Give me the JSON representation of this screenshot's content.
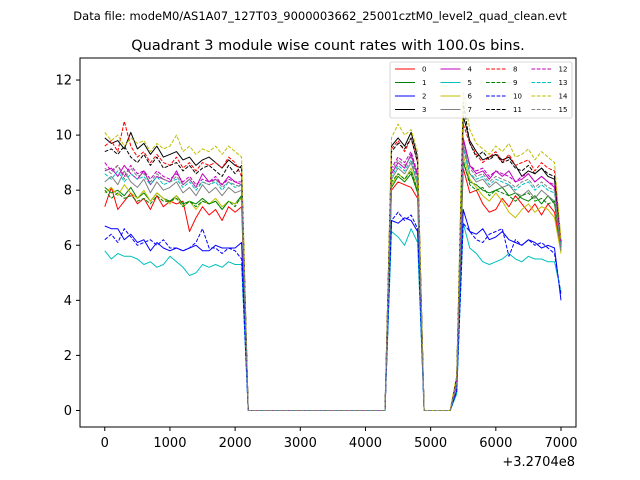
{
  "suptitle": "Data file: modeM0/AS1A07_127T03_9000003662_25001cztM0_level2_quad_clean.evt",
  "chart_data": {
    "type": "line",
    "title": "Quadrant 3 module wise count rates with 100.0s bins.",
    "xlabel": "",
    "ylabel": "",
    "x_offset_label": "+3.2704e8",
    "xlim": [
      -380,
      7230
    ],
    "ylim": [
      -0.6,
      12.8
    ],
    "xticks": [
      0,
      1000,
      2000,
      3000,
      4000,
      5000,
      6000,
      7000
    ],
    "yticks": [
      0,
      2,
      4,
      6,
      8,
      10,
      12
    ],
    "legend_position": "upper-right",
    "legend_columns": 4,
    "x": [
      0,
      100,
      200,
      300,
      400,
      500,
      600,
      700,
      800,
      900,
      1000,
      1100,
      1200,
      1300,
      1400,
      1500,
      1600,
      1700,
      1800,
      1900,
      2000,
      2100,
      2200,
      2300,
      2400,
      2500,
      2600,
      2700,
      2800,
      2900,
      3000,
      3100,
      3200,
      3300,
      3400,
      3500,
      3600,
      3700,
      3800,
      3900,
      4000,
      4100,
      4200,
      4300,
      4400,
      4500,
      4600,
      4700,
      4800,
      4900,
      5000,
      5100,
      5200,
      5300,
      5400,
      5500,
      5600,
      5700,
      5800,
      5900,
      6000,
      6100,
      6200,
      6300,
      6400,
      6500,
      6600,
      6700,
      6800,
      6900,
      7000
    ],
    "series": [
      {
        "name": "0",
        "color": "#ff0000",
        "dash": "solid",
        "values": [
          7.4,
          8.1,
          7.3,
          7.6,
          7.9,
          7.5,
          7.7,
          7.3,
          7.8,
          7.4,
          7.6,
          7.5,
          7.6,
          6.5,
          7.0,
          7.4,
          7.1,
          7.3,
          6.9,
          7.4,
          7.2,
          7.4,
          0.0,
          0,
          0,
          0,
          0,
          0,
          0,
          0,
          0,
          0,
          0,
          0,
          0,
          0,
          0,
          0,
          0,
          0,
          0,
          0,
          0,
          0,
          8.0,
          8.3,
          8.2,
          8.1,
          7.7,
          0.0,
          0,
          0,
          0,
          0,
          0.9,
          8.8,
          7.9,
          8.0,
          7.5,
          7.2,
          7.3,
          7.7,
          7.4,
          7.8,
          7.5,
          7.2,
          7.5,
          7.1,
          7.5,
          7.2,
          5.8
        ]
      },
      {
        "name": "1",
        "color": "#008000",
        "dash": "solid",
        "values": [
          8.1,
          7.9,
          8.0,
          7.8,
          8.1,
          7.7,
          7.9,
          7.6,
          7.9,
          7.7,
          7.6,
          7.8,
          7.5,
          7.6,
          7.5,
          7.7,
          7.5,
          7.6,
          7.3,
          7.6,
          7.5,
          7.8,
          0.0,
          0,
          0,
          0,
          0,
          0,
          0,
          0,
          0,
          0,
          0,
          0,
          0,
          0,
          0,
          0,
          0,
          0,
          0,
          0,
          0,
          0,
          8.1,
          8.5,
          8.3,
          8.6,
          7.9,
          0.0,
          0,
          0,
          0,
          0,
          1.0,
          9.0,
          8.3,
          8.2,
          8.0,
          7.9,
          8.0,
          8.1,
          7.8,
          7.9,
          7.7,
          7.6,
          7.8,
          7.5,
          7.8,
          7.5,
          5.9
        ]
      },
      {
        "name": "2",
        "color": "#0000ff",
        "dash": "solid",
        "values": [
          6.7,
          6.6,
          6.6,
          6.2,
          6.4,
          6.1,
          6.2,
          5.8,
          6.1,
          5.9,
          5.8,
          5.9,
          5.8,
          5.9,
          6.0,
          5.8,
          5.8,
          6.0,
          5.9,
          5.9,
          5.9,
          6.1,
          0.0,
          0,
          0,
          0,
          0,
          0,
          0,
          0,
          0,
          0,
          0,
          0,
          0,
          0,
          0,
          0,
          0,
          0,
          0,
          0,
          0,
          0,
          6.9,
          6.8,
          7.0,
          6.9,
          6.5,
          0.0,
          0,
          0,
          0,
          0,
          0.7,
          7.3,
          6.5,
          6.4,
          6.6,
          6.2,
          6.3,
          6.5,
          6.2,
          6.1,
          6.0,
          6.2,
          6.1,
          5.9,
          6.0,
          5.9,
          4.0
        ]
      },
      {
        "name": "3",
        "color": "#000000",
        "dash": "solid",
        "values": [
          9.9,
          9.7,
          9.8,
          9.5,
          10.1,
          9.5,
          9.7,
          9.3,
          9.6,
          9.2,
          9.3,
          9.4,
          9.1,
          9.2,
          8.9,
          9.1,
          9.2,
          9.0,
          8.8,
          9.1,
          8.9,
          8.8,
          0.0,
          0,
          0,
          0,
          0,
          0,
          0,
          0,
          0,
          0,
          0,
          0,
          0,
          0,
          0,
          0,
          0,
          0,
          0,
          0,
          0,
          0,
          9.6,
          9.9,
          9.6,
          10.1,
          9.2,
          0.0,
          0,
          0,
          0,
          0,
          1.2,
          10.7,
          9.8,
          9.4,
          9.1,
          9.2,
          9.3,
          9.1,
          9.2,
          8.9,
          8.5,
          8.7,
          8.6,
          8.8,
          8.5,
          8.4,
          6.0
        ]
      },
      {
        "name": "4",
        "color": "#bf00bf",
        "dash": "solid",
        "values": [
          8.7,
          8.8,
          8.5,
          8.9,
          8.6,
          8.4,
          8.7,
          8.2,
          8.5,
          8.4,
          8.3,
          8.7,
          8.2,
          8.4,
          8.1,
          8.6,
          8.3,
          8.4,
          8.2,
          8.5,
          8.3,
          8.2,
          0.0,
          0,
          0,
          0,
          0,
          0,
          0,
          0,
          0,
          0,
          0,
          0,
          0,
          0,
          0,
          0,
          0,
          0,
          0,
          0,
          0,
          0,
          8.6,
          9.0,
          8.8,
          9.3,
          8.5,
          0.0,
          0,
          0,
          0,
          0,
          1.0,
          9.9,
          8.9,
          8.6,
          8.7,
          8.4,
          8.7,
          8.5,
          8.7,
          8.3,
          8.4,
          8.6,
          8.3,
          8.5,
          8.3,
          8.1,
          5.9
        ]
      },
      {
        "name": "5",
        "color": "#00bfbf",
        "dash": "solid",
        "values": [
          5.8,
          5.5,
          5.7,
          5.6,
          5.6,
          5.5,
          5.3,
          5.4,
          5.2,
          5.3,
          5.6,
          5.4,
          5.2,
          4.9,
          5.0,
          5.3,
          5.2,
          5.3,
          5.2,
          5.4,
          5.3,
          5.3,
          0.0,
          0,
          0,
          0,
          0,
          0,
          0,
          0,
          0,
          0,
          0,
          0,
          0,
          0,
          0,
          0,
          0,
          0,
          0,
          0,
          0,
          0,
          6.5,
          6.3,
          6.0,
          6.6,
          6.1,
          0.0,
          0,
          0,
          0,
          0,
          0.6,
          6.8,
          5.9,
          5.7,
          5.4,
          5.3,
          5.4,
          5.5,
          5.7,
          5.5,
          5.4,
          5.6,
          5.5,
          5.5,
          5.4,
          5.4,
          4.3
        ]
      },
      {
        "name": "6",
        "color": "#bfbf00",
        "dash": "solid",
        "values": [
          7.9,
          8.1,
          7.8,
          8.2,
          7.9,
          7.7,
          8.0,
          7.6,
          7.9,
          7.7,
          7.5,
          7.8,
          7.4,
          7.6,
          7.3,
          7.6,
          7.5,
          7.7,
          7.4,
          7.6,
          7.5,
          7.7,
          0.0,
          0,
          0,
          0,
          0,
          0,
          0,
          0,
          0,
          0,
          0,
          0,
          0,
          0,
          0,
          0,
          0,
          0,
          0,
          0,
          0,
          0,
          8.2,
          8.6,
          8.4,
          8.8,
          8.0,
          0.0,
          0,
          0,
          0,
          0,
          1.0,
          9.3,
          8.4,
          8.1,
          7.8,
          7.6,
          7.9,
          7.6,
          7.2,
          7.0,
          7.3,
          7.5,
          7.2,
          7.4,
          7.3,
          7.0,
          5.7
        ]
      },
      {
        "name": "7",
        "color": "#808080",
        "dash": "solid",
        "values": [
          8.3,
          8.5,
          8.2,
          8.7,
          8.3,
          8.1,
          8.4,
          7.9,
          8.3,
          8.0,
          8.1,
          8.3,
          7.9,
          8.1,
          7.8,
          8.2,
          7.9,
          8.1,
          7.8,
          8.1,
          7.9,
          8.0,
          0.0,
          0,
          0,
          0,
          0,
          0,
          0,
          0,
          0,
          0,
          0,
          0,
          0,
          0,
          0,
          0,
          0,
          0,
          0,
          0,
          0,
          0,
          8.4,
          8.8,
          8.6,
          9.0,
          8.2,
          0.0,
          0,
          0,
          0,
          0,
          1.0,
          9.6,
          8.6,
          8.3,
          8.4,
          8.1,
          8.3,
          8.1,
          8.2,
          7.9,
          7.8,
          8.0,
          7.7,
          8.0,
          7.8,
          7.6,
          5.8
        ]
      },
      {
        "name": "8",
        "color": "#ff0000",
        "dash": "dashed",
        "values": [
          9.6,
          9.8,
          9.4,
          10.5,
          9.6,
          9.2,
          9.4,
          9.0,
          9.3,
          9.0,
          8.9,
          9.2,
          8.8,
          9.0,
          8.7,
          9.0,
          8.9,
          9.0,
          8.8,
          9.2,
          9.0,
          8.5,
          0.0,
          0,
          0,
          0,
          0,
          0,
          0,
          0,
          0,
          0,
          0,
          0,
          0,
          0,
          0,
          0,
          0,
          0,
          0,
          0,
          0,
          0,
          9.5,
          9.8,
          9.4,
          9.9,
          9.0,
          0.0,
          0,
          0,
          0,
          0,
          1.2,
          10.4,
          9.7,
          9.3,
          9.0,
          9.2,
          9.4,
          9.0,
          9.3,
          8.9,
          9.0,
          9.1,
          8.7,
          9.0,
          8.8,
          8.7,
          6.1
        ]
      },
      {
        "name": "9",
        "color": "#008000",
        "dash": "dashed",
        "values": [
          8.0,
          7.7,
          7.9,
          7.7,
          7.8,
          7.6,
          7.7,
          7.5,
          7.8,
          7.6,
          7.6,
          7.7,
          7.4,
          7.6,
          7.4,
          7.6,
          7.5,
          7.6,
          7.3,
          7.6,
          7.4,
          7.8,
          0.0,
          0,
          0,
          0,
          0,
          0,
          0,
          0,
          0,
          0,
          0,
          0,
          0,
          0,
          0,
          0,
          0,
          0,
          0,
          0,
          0,
          0,
          8.3,
          8.6,
          8.4,
          8.7,
          8.0,
          0.0,
          0,
          0,
          0,
          0,
          1.0,
          9.1,
          8.2,
          8.0,
          8.1,
          7.8,
          8.0,
          7.9,
          7.8,
          7.6,
          7.8,
          7.9,
          7.6,
          7.7,
          7.5,
          7.6,
          5.9
        ]
      },
      {
        "name": "10",
        "color": "#0000ff",
        "dash": "dashed",
        "values": [
          6.2,
          6.4,
          6.1,
          6.6,
          6.3,
          6.0,
          6.1,
          6.2,
          6.0,
          6.2,
          5.9,
          5.9,
          5.8,
          5.9,
          6.1,
          6.6,
          5.9,
          5.9,
          5.7,
          5.9,
          5.8,
          5.5,
          0.0,
          0,
          0,
          0,
          0,
          0,
          0,
          0,
          0,
          0,
          0,
          0,
          0,
          0,
          0,
          0,
          0,
          0,
          0,
          0,
          0,
          0,
          6.9,
          7.2,
          6.9,
          7.1,
          6.6,
          0.0,
          0,
          0,
          0,
          0,
          0.7,
          6.8,
          6.5,
          6.2,
          6.1,
          6.4,
          6.5,
          6.6,
          5.6,
          6.2,
          6.0,
          6.2,
          6.0,
          6.1,
          5.9,
          5.7,
          4.2
        ]
      },
      {
        "name": "11",
        "color": "#000000",
        "dash": "dashed",
        "values": [
          9.4,
          9.5,
          9.3,
          9.6,
          9.2,
          9.0,
          9.3,
          8.9,
          9.2,
          8.8,
          8.9,
          9.0,
          8.7,
          8.9,
          8.6,
          8.8,
          8.9,
          8.7,
          8.5,
          8.9,
          8.6,
          8.9,
          0.0,
          0,
          0,
          0,
          0,
          0,
          0,
          0,
          0,
          0,
          0,
          0,
          0,
          0,
          0,
          0,
          0,
          0,
          0,
          0,
          0,
          0,
          9.4,
          9.7,
          9.5,
          9.9,
          9.0,
          0.0,
          0,
          0,
          0,
          0,
          1.2,
          11.2,
          9.7,
          9.2,
          9.4,
          9.1,
          9.3,
          9.0,
          9.1,
          8.8,
          8.7,
          8.9,
          8.6,
          8.8,
          8.6,
          8.5,
          6.1
        ]
      },
      {
        "name": "12",
        "color": "#bf00bf",
        "dash": "dashed",
        "values": [
          9.0,
          8.7,
          8.9,
          8.5,
          8.9,
          8.6,
          8.7,
          8.4,
          8.7,
          8.5,
          8.4,
          8.6,
          8.3,
          8.5,
          8.2,
          8.4,
          8.3,
          8.5,
          8.2,
          8.4,
          8.3,
          8.3,
          0.0,
          0,
          0,
          0,
          0,
          0,
          0,
          0,
          0,
          0,
          0,
          0,
          0,
          0,
          0,
          0,
          0,
          0,
          0,
          0,
          0,
          0,
          8.8,
          9.2,
          9.0,
          9.4,
          8.6,
          0.0,
          0,
          0,
          0,
          0,
          1.1,
          9.8,
          8.9,
          8.7,
          8.8,
          8.5,
          8.7,
          8.6,
          8.5,
          8.3,
          8.5,
          8.6,
          8.3,
          8.5,
          8.3,
          8.2,
          6.0
        ]
      },
      {
        "name": "13",
        "color": "#00bfbf",
        "dash": "dashed",
        "values": [
          8.6,
          8.4,
          8.7,
          8.3,
          8.6,
          8.4,
          8.5,
          8.2,
          8.5,
          8.2,
          8.3,
          8.4,
          8.1,
          8.3,
          8.0,
          8.3,
          8.2,
          8.3,
          8.0,
          8.3,
          8.1,
          8.2,
          0.0,
          0,
          0,
          0,
          0,
          0,
          0,
          0,
          0,
          0,
          0,
          0,
          0,
          0,
          0,
          0,
          0,
          0,
          0,
          0,
          0,
          0,
          8.5,
          8.9,
          8.7,
          9.1,
          8.3,
          0.0,
          0,
          0,
          0,
          0,
          1.0,
          9.5,
          8.6,
          8.4,
          8.5,
          8.2,
          8.4,
          8.3,
          8.2,
          8.0,
          8.2,
          8.3,
          8.0,
          8.2,
          8.0,
          7.9,
          5.9
        ]
      },
      {
        "name": "14",
        "color": "#bfbf00",
        "dash": "dashed",
        "values": [
          10.1,
          9.8,
          10.0,
          9.6,
          9.9,
          9.7,
          9.8,
          9.4,
          9.7,
          9.5,
          9.6,
          10.0,
          9.4,
          9.6,
          9.3,
          9.5,
          9.4,
          9.6,
          9.3,
          9.6,
          9.4,
          9.2,
          0.0,
          0,
          0,
          0,
          0,
          0,
          0,
          0,
          0,
          0,
          0,
          0,
          0,
          0,
          0,
          0,
          0,
          0,
          0,
          0,
          0,
          0,
          9.9,
          10.4,
          10.0,
          10.2,
          9.4,
          0.0,
          0,
          0,
          0,
          0,
          1.3,
          11.6,
          10.2,
          9.7,
          9.5,
          9.3,
          9.6,
          9.4,
          9.7,
          9.2,
          9.3,
          9.5,
          9.1,
          9.4,
          9.2,
          9.0,
          6.2
        ]
      },
      {
        "name": "15",
        "color": "#808080",
        "dash": "dashed",
        "values": [
          8.8,
          8.6,
          8.9,
          8.4,
          8.8,
          8.5,
          8.6,
          8.3,
          8.6,
          8.4,
          8.3,
          8.5,
          8.2,
          8.4,
          8.1,
          8.3,
          8.2,
          8.4,
          8.1,
          8.3,
          8.2,
          8.1,
          0.0,
          0,
          0,
          0,
          0,
          0,
          0,
          0,
          0,
          0,
          0,
          0,
          0,
          0,
          0,
          0,
          0,
          0,
          0,
          0,
          0,
          0,
          8.7,
          9.1,
          8.9,
          9.2,
          8.4,
          0.0,
          0,
          0,
          0,
          0,
          1.0,
          9.7,
          8.8,
          8.5,
          8.6,
          8.3,
          8.5,
          8.4,
          8.3,
          8.1,
          8.3,
          8.4,
          8.1,
          8.3,
          8.1,
          8.0,
          5.8
        ]
      }
    ]
  }
}
